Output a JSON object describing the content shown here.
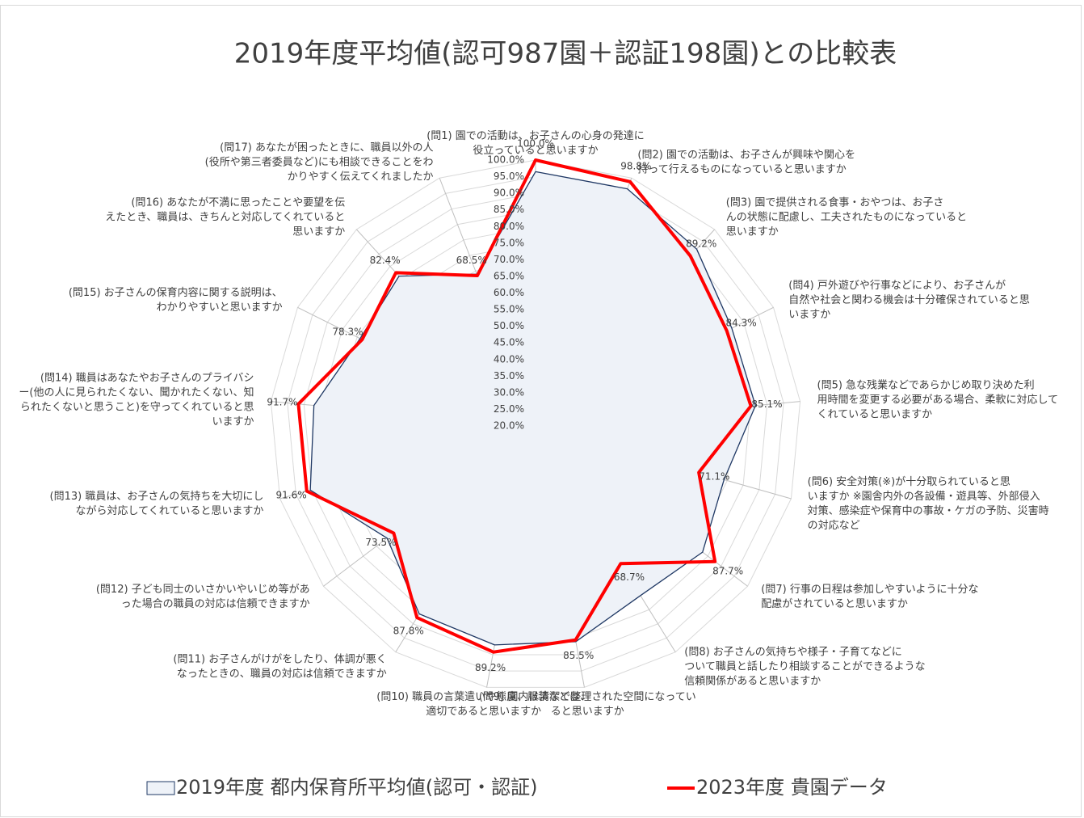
{
  "chart_data": {
    "type": "radar",
    "title": "2019年度平均値(認可987園＋認証198園)との比較表",
    "categories": [
      "(問1) 園での活動は、お子さんの心身の発達に役立っていると思いますか",
      "(問2) 園での活動は、お子さんが興味や関心を持って行えるものになっていると思いますか",
      "(問3) 園で提供される食事・おやつは、お子さんの状態に配慮し、工夫されたものになっていると思いますか",
      "(問4) 戸外遊びや行事などにより、お子さんが自然や社会と関わる機会は十分確保されていると思いますか",
      "(問5) 急な残業などであらかじめ取り決めた利用時間を変更する必要がある場合、柔軟に対応してくれていると思いますか",
      "(問6) 安全対策(※)が十分取られていると思いますか ※園舎内外の各設備・遊具等、外部侵入対策、感染症や保育中の事故・ケガの予防、災害時の対応など",
      "(問7) 行事の日程は参加しやすいように十分な配慮がされていると思いますか",
      "(問8) お子さんの気持ちや様子・子育てなどについて職員と話したり相談することができるような信頼関係があると思いますか",
      "(問9) 園内は清潔で整理された空間になっていると思いますか",
      "(問10) 職員の言葉遣いや態度、服装などは、適切であると思いますか",
      "(問11) お子さんがけがをしたり、体調が悪くなったときの、職員の対応は信頼できますか",
      "(問12) 子ども同士のいさかいやいじめ等があった場合の職員の対応は信頼できますか",
      "(問13) 職員は、お子さんの気持ちを大切にしながら対応してくれていると思いますか",
      "(問14) 職員はあなたやお子さんのプライバシー(他の人に見られたくない、聞かれたくない、知られたくないと思うこと)を守ってくれていると思いますか",
      "(問15) お子さんの保育内容に関する説明は、わかりやすいと思いますか",
      "(問16) あなたが不満に思ったことや要望を伝えたとき、職員は、きちんと対応してくれていると思いますか",
      "(問17) あなたが困ったときに、職員以外の人(役所や第三者委員など)にも相談できることをわかりやすく伝えてくれましたか"
    ],
    "series": [
      {
        "name": "2019年度 都内保育所平均値(認可・認証)",
        "color": "#1f3864",
        "fill": "#eef2f8",
        "values": [
          96.5,
          96.5,
          92,
          86,
          86.5,
          79,
          83,
          80,
          86,
          87,
          86.5,
          76,
          90.5,
          87,
          79,
          81,
          69
        ]
      },
      {
        "name": "2023年度 貴園データ",
        "color": "#ff0000",
        "values": [
          100,
          98.8,
          89.2,
          84.3,
          85.1,
          71.1,
          87.7,
          68.7,
          85.5,
          89.2,
          87.8,
          73.5,
          91.6,
          91.7,
          78.3,
          82.4,
          68.5
        ],
        "value_labels": [
          "100.0%",
          "98.8%",
          "89.2%",
          "84.3%",
          "85.1%",
          "71.1%",
          "87.7%",
          "68.7%",
          "85.5%",
          "89.2%",
          "87.8%",
          "73.5%",
          "91.6%",
          "91.7%",
          "78.3%",
          "82.4%",
          "68.5%"
        ]
      }
    ],
    "ylim": [
      20,
      100
    ],
    "yticks": [
      {
        "value": 20,
        "label": "20.0%"
      },
      {
        "value": 25,
        "label": "25.0%"
      },
      {
        "value": 30,
        "label": "30.0%"
      },
      {
        "value": 35,
        "label": "35.0%"
      },
      {
        "value": 40,
        "label": "40.0%"
      },
      {
        "value": 45,
        "label": "45.0%"
      },
      {
        "value": 50,
        "label": "50.0%"
      },
      {
        "value": 55,
        "label": "55.0%"
      },
      {
        "value": 60,
        "label": "60.0%"
      },
      {
        "value": 65,
        "label": "65.0%"
      },
      {
        "value": 70,
        "label": "70.0%"
      },
      {
        "value": 75,
        "label": "75.0%"
      },
      {
        "value": 80,
        "label": "80.0%"
      },
      {
        "value": 85,
        "label": "85.0%"
      },
      {
        "value": 90,
        "label": "90.0%"
      },
      {
        "value": 95,
        "label": "95.0%"
      },
      {
        "value": 100,
        "label": "100.0%"
      }
    ],
    "grid": true
  }
}
